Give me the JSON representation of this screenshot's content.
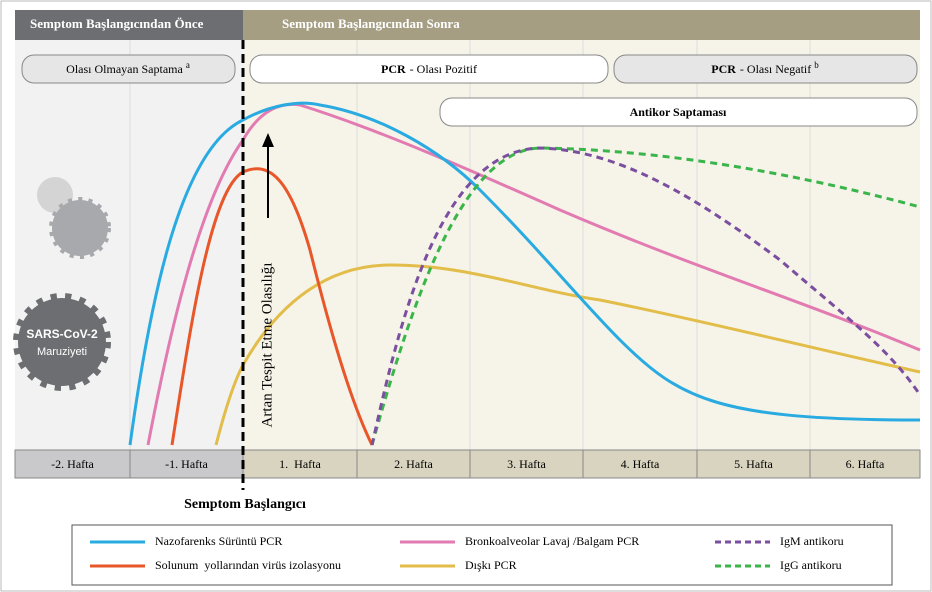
{
  "header": {
    "before": "Semptom Başlangıcından Önce",
    "after": "Semptom Başlangıcından Sonra"
  },
  "phases": {
    "unlikely": {
      "label": "Olası Olmayan Saptama",
      "note": "a"
    },
    "pcr_positive": {
      "test": "PCR",
      "label": "- Olası Pozitif"
    },
    "pcr_negative": {
      "test": "PCR",
      "label": "- Olası Negatif",
      "note": "b"
    },
    "antibody": {
      "label": "Antikor Saptaması"
    }
  },
  "virus": {
    "name": "SARS-CoV-2",
    "label": "Maruziyeti"
  },
  "arrow_label": "Artan Tespit Etme Olasılığı",
  "weeks": [
    "-2. Hafta",
    "-1. Hafta",
    "1.  Hafta",
    "2. Hafta",
    "3. Hafta",
    "4. Hafta",
    "5. Hafta",
    "6. Hafta"
  ],
  "onset": "Semptom Başlangıcı",
  "legend": [
    {
      "name": "Nazofarenks Sürüntü PCR",
      "color": "#29abe2"
    },
    {
      "name": "Solunum  yollarından virüs izolasyonu",
      "color": "#e8572a"
    },
    {
      "name": "Bronkoalveolar Lavaj /Balgam PCR",
      "color": "#e27bb1"
    },
    {
      "name": "Dışkı PCR",
      "color": "#e2bd4a"
    },
    {
      "name": "IgM antikoru",
      "color": "#7b4fa0",
      "dashed": true
    },
    {
      "name": "IgG antikoru",
      "color": "#39b54a",
      "dashed": true
    }
  ]
}
